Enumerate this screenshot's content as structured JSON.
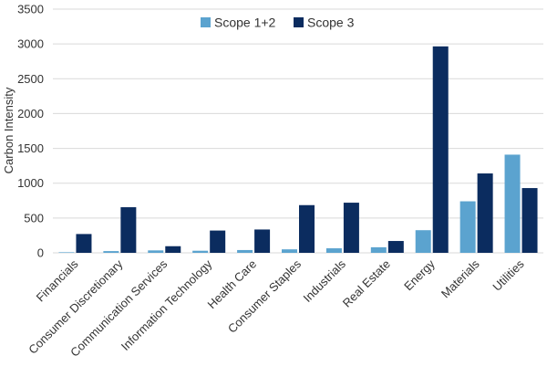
{
  "chart_data": {
    "type": "bar",
    "title": "",
    "xlabel": "",
    "ylabel": "Carbon Intensity",
    "ylim": [
      0,
      3500
    ],
    "yticks": [
      0,
      500,
      1000,
      1500,
      2000,
      2500,
      3000,
      3500
    ],
    "grid": true,
    "legend_position": "top-center",
    "categories": [
      "Financials",
      "Consumer Discretionary",
      "Communication Services",
      "Information Technology",
      "Health Care",
      "Consumer Staples",
      "Industrials",
      "Real Estate",
      "Energy",
      "Materials",
      "Utilities"
    ],
    "series": [
      {
        "name": "Scope 1+2",
        "color": "#5ba3cf",
        "values": [
          8,
          25,
          35,
          30,
          40,
          50,
          65,
          80,
          325,
          740,
          1410
        ]
      },
      {
        "name": "Scope 3",
        "color": "#0b2c5f",
        "values": [
          270,
          655,
          95,
          320,
          335,
          685,
          720,
          170,
          2965,
          1140,
          930
        ]
      }
    ]
  }
}
